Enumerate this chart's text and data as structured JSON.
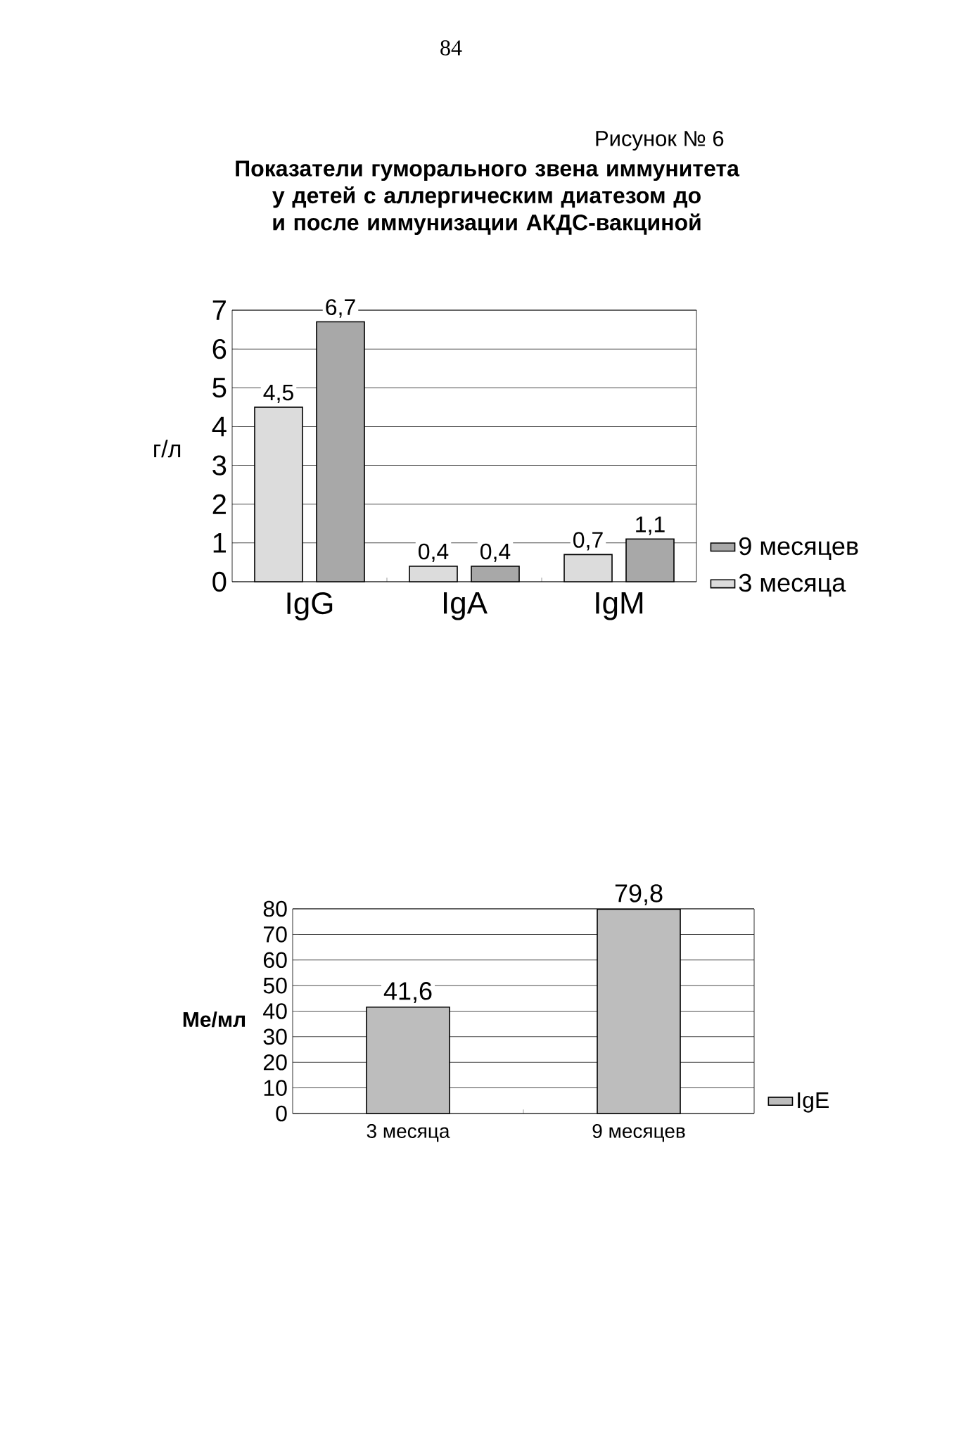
{
  "chart_data": [
    {
      "type": "bar",
      "title": "Показатели гуморального звена иммунитета у детей с аллергическим диатезом до и после иммунизации АКДС-вакциной",
      "annotations": [
        "84",
        "Рисунок № 6"
      ],
      "ylabel": "г/л",
      "categories": [
        "IgG",
        "IgA",
        "IgM"
      ],
      "series": [
        {
          "name": "3 месяца",
          "color": "#dcdcdc",
          "values": [
            4.5,
            0.4,
            0.7
          ],
          "value_labels": [
            "4,5",
            "0,4",
            "0,7"
          ]
        },
        {
          "name": "9 месяцев",
          "color": "#a8a8a8",
          "values": [
            6.7,
            0.4,
            1.1
          ],
          "value_labels": [
            "6,7",
            "0,4",
            "1,1"
          ]
        }
      ],
      "ylim": [
        0,
        7
      ],
      "yticks": [
        0,
        1,
        2,
        3,
        4,
        5,
        6,
        7
      ],
      "grid": "y",
      "legend": "right"
    },
    {
      "type": "bar",
      "ylabel": "Ме/мл",
      "categories": [
        "3 месяца",
        "9 месяцев"
      ],
      "series": [
        {
          "name": "IgE",
          "color": "#bdbdbd",
          "values": [
            41.6,
            79.8
          ],
          "value_labels": [
            "41,6",
            "79,8"
          ]
        }
      ],
      "ylim": [
        0,
        80
      ],
      "yticks": [
        0,
        10,
        20,
        30,
        40,
        50,
        60,
        70,
        80
      ],
      "grid": "y",
      "legend": "right"
    }
  ]
}
